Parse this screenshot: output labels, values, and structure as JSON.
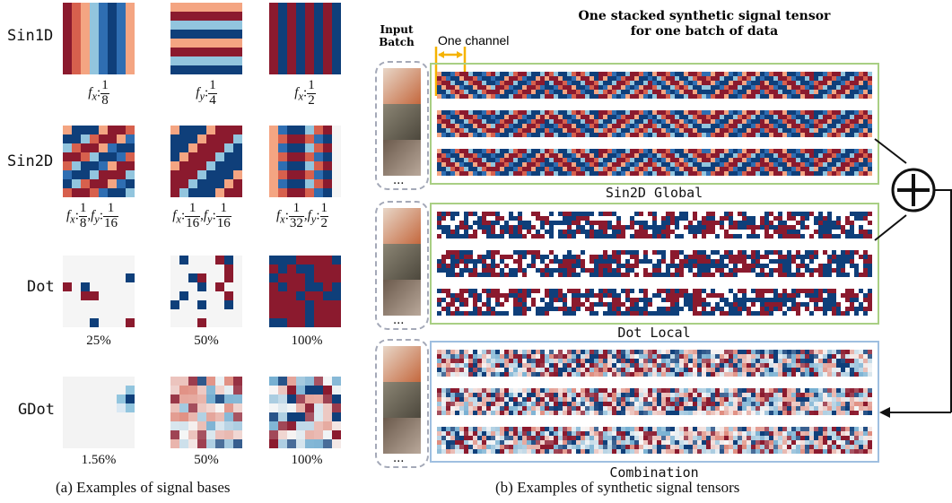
{
  "figure_a": {
    "caption": "(a) Examples of signal bases",
    "rows": [
      {
        "label": "Sin1D",
        "tiles": [
          {
            "kind": "sin1d_x",
            "freq_label": {
              "var": "f",
              "sub": "x",
              "num": "1",
              "den": "8"
            }
          },
          {
            "kind": "sin1d_y",
            "freq_label": {
              "var": "f",
              "sub": "y",
              "num": "1",
              "den": "4"
            }
          },
          {
            "kind": "sin1d_x2",
            "freq_label": {
              "var": "f",
              "sub": "x",
              "num": "1",
              "den": "2"
            }
          }
        ]
      },
      {
        "label": "Sin2D",
        "tiles": [
          {
            "kind": "sin2d_a",
            "freq_label": {
              "fx": [
                "1",
                "8"
              ],
              "fy": [
                "1",
                "16"
              ]
            }
          },
          {
            "kind": "sin2d_b",
            "freq_label": {
              "fx": [
                "1",
                "16"
              ],
              "fy": [
                "1",
                "16"
              ]
            }
          },
          {
            "kind": "sin2d_c",
            "freq_label": {
              "fx": [
                "1",
                "32"
              ],
              "fy": [
                "1",
                "2"
              ]
            }
          }
        ]
      },
      {
        "label": "Dot",
        "tiles": [
          {
            "kind": "dot",
            "density": 0.25,
            "caption": "25%"
          },
          {
            "kind": "dot",
            "density": 0.5,
            "caption": "50%"
          },
          {
            "kind": "dot",
            "density": 1.0,
            "caption": "100%"
          }
        ]
      },
      {
        "label": "GDot",
        "tiles": [
          {
            "kind": "gdot",
            "density": 0.0156,
            "caption": "1.56%"
          },
          {
            "kind": "gdot",
            "density": 0.5,
            "caption": "50%"
          },
          {
            "kind": "gdot",
            "density": 1.0,
            "caption": "100%"
          }
        ]
      }
    ]
  },
  "figure_b": {
    "caption": "(b) Examples of synthetic signal tensors",
    "title_line1": "One stacked synthetic signal tensor",
    "title_line2": "for one batch of data",
    "input_label_line1": "Input",
    "input_label_line2": "Batch",
    "one_channel_label": "One channel",
    "ellipsis": "...",
    "plus_symbol": "+",
    "panels": [
      {
        "label": "Sin2D Global",
        "border_color": "#a9cf84",
        "pattern": "sin"
      },
      {
        "label": "Dot Local",
        "border_color": "#a9cf84",
        "pattern": "dot"
      },
      {
        "label": "Combination",
        "border_color": "#9fbfe0",
        "pattern": "comb"
      }
    ]
  },
  "colors": {
    "dark_red": "#8b1a2e",
    "red": "#d7604d",
    "salmon": "#f4a582",
    "light_blue": "#92c5de",
    "blue": "#2f6eb2",
    "navy": "#0f3f7a",
    "white": "#f5f5f5",
    "accent_orange": "#f5b300"
  }
}
